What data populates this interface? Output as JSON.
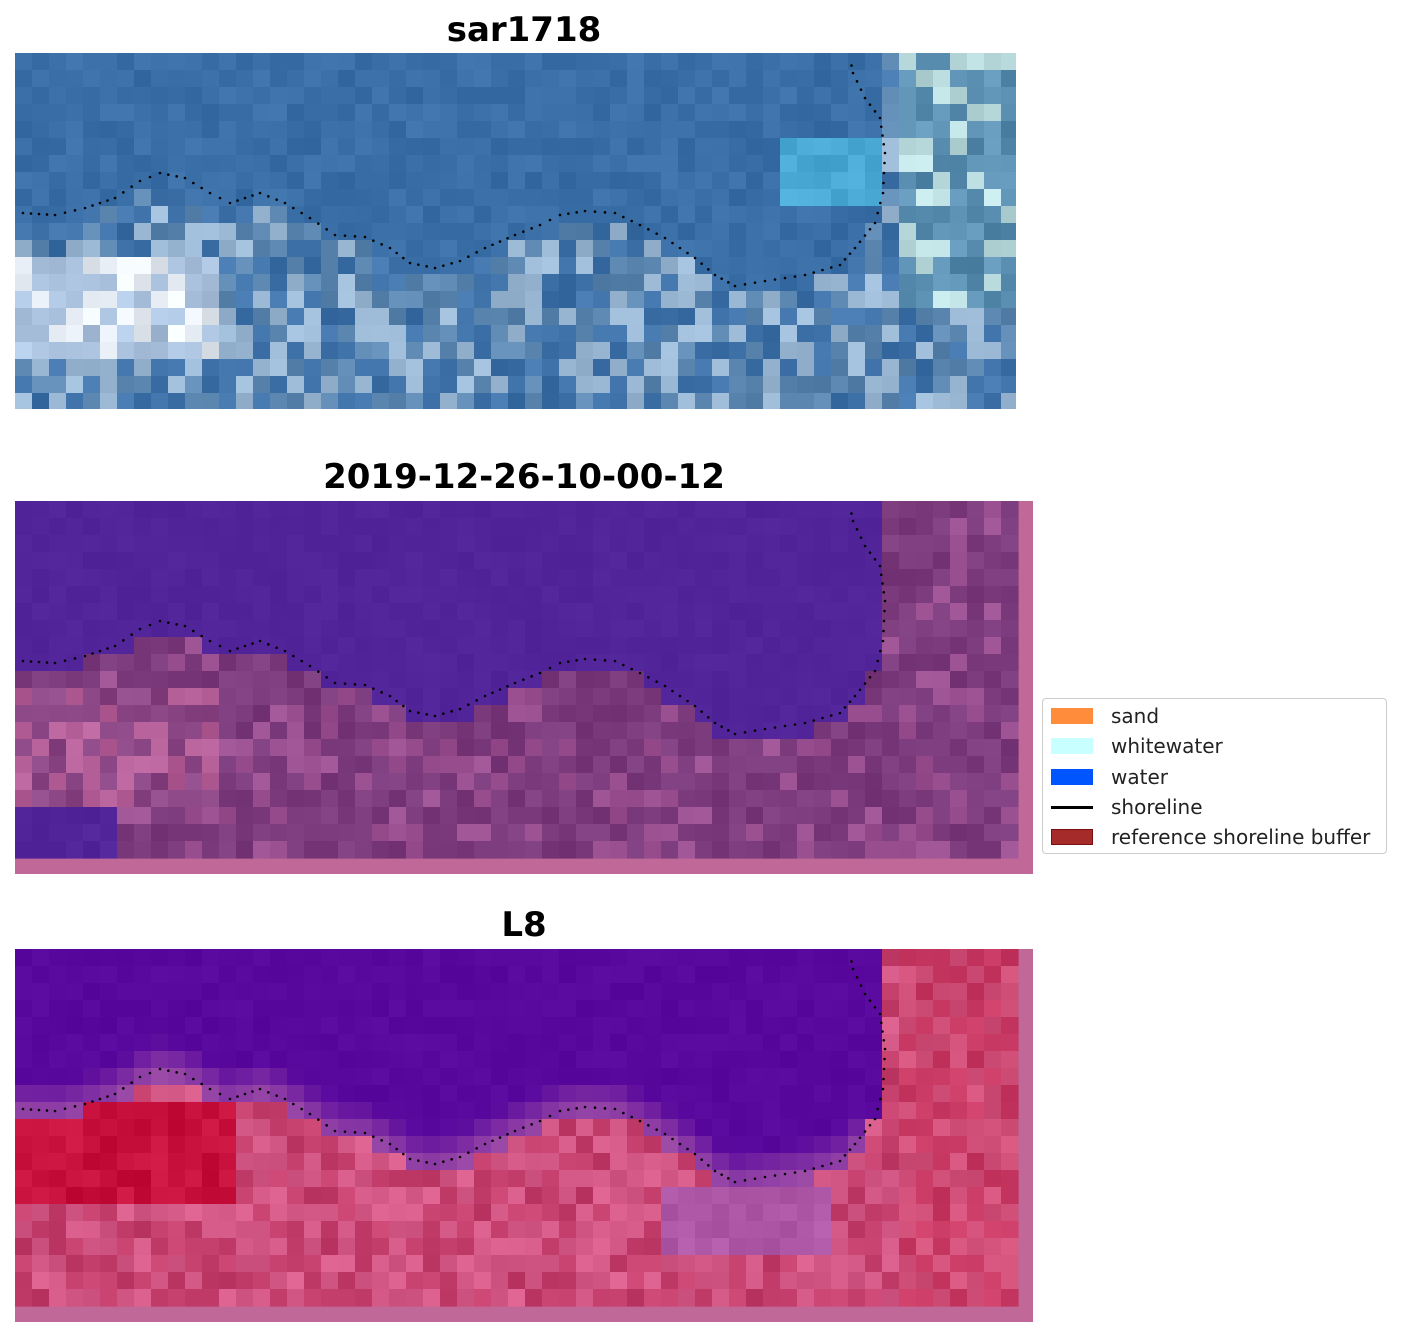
{
  "panels": [
    {
      "title": "sar1718"
    },
    {
      "title": "2019-12-26-10-00-12"
    },
    {
      "title": "L8"
    }
  ],
  "legend": {
    "items": [
      {
        "label": "sand",
        "type": "patch",
        "color": "#ff8c3a"
      },
      {
        "label": "whitewater",
        "type": "patch",
        "color": "#c8ffff"
      },
      {
        "label": "water",
        "type": "patch",
        "color": "#0055ff"
      },
      {
        "label": "shoreline",
        "type": "line",
        "color": "#000000"
      },
      {
        "label": "reference shoreline buffer",
        "type": "patch",
        "color": "#a52a2a",
        "edge": "#7a1010"
      }
    ]
  },
  "colors": {
    "rgb_water": "#3a6ea6",
    "index_water": "#52249a",
    "index_land": "#7a3a7c",
    "index_border": "#c06898",
    "l8_water": "#58089c",
    "l8_land": "#cc3a6c",
    "l8_border": "#c06898"
  }
}
